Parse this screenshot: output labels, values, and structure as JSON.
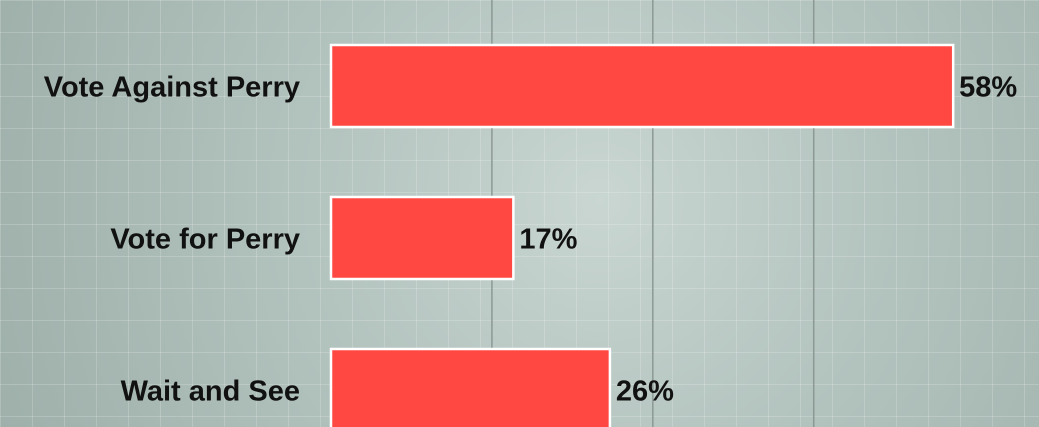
{
  "chart_data": {
    "type": "bar",
    "orientation": "horizontal",
    "categories": [
      "Vote Against Perry",
      "Vote for Perry",
      "Wait and See"
    ],
    "values": [
      58,
      17,
      26
    ],
    "value_labels": [
      "58%",
      "17%",
      "26%"
    ],
    "color": "#ff4842",
    "xlim": [
      0,
      66
    ],
    "xticks": [
      15,
      30,
      45
    ],
    "grid": true
  }
}
